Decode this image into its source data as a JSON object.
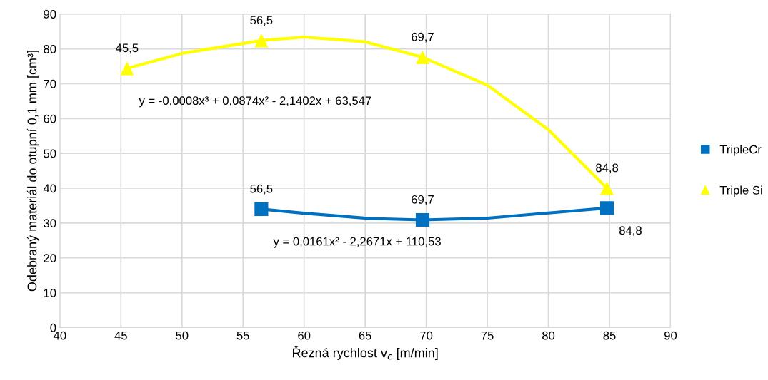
{
  "chart_data": {
    "type": "scatter",
    "xlabel": "Řezná rychlost v$_{c}$ [m/min]",
    "ylabel": "Odebraný materiál do otupní 0,1 mm [cm³]",
    "xlim": [
      40,
      90
    ],
    "xticks": [
      40,
      45,
      50,
      55,
      60,
      65,
      70,
      75,
      80,
      85,
      90
    ],
    "ylim": [
      0,
      90
    ],
    "yticks": [
      0,
      10,
      20,
      30,
      40,
      50,
      60,
      70,
      80,
      90
    ],
    "grid": true,
    "legend": "right",
    "series": [
      {
        "name": "TripleCr",
        "marker": "square",
        "color": "#0070c0",
        "x": [
          56.5,
          69.7,
          84.8
        ],
        "values": [
          34,
          30.9,
          34.3
        ]
      },
      {
        "name": "Triple Si",
        "marker": "triangle",
        "color": "#ffff00",
        "x": [
          45.5,
          56.5,
          69.7,
          84.8
        ],
        "values": [
          74.4,
          82.4,
          77.6,
          40
        ]
      },
      {
        "type": "line",
        "color": "#0070c0",
        "x": [
          56.5,
          60,
          65.4,
          69.7,
          75,
          80,
          84.8
        ],
        "values": [
          34,
          32.8,
          31.3,
          30.9,
          31.4,
          32.9,
          34.3
        ]
      },
      {
        "type": "line",
        "color": "#ffff00",
        "x": [
          45.5,
          50,
          56.5,
          60,
          65,
          69.7,
          75,
          80,
          84.8
        ],
        "values": [
          74.4,
          78.7,
          82.4,
          83.4,
          82,
          77.6,
          69.6,
          56.8,
          40
        ]
      }
    ],
    "annotations": [
      {
        "text": "56,5",
        "x": 56.5,
        "y": 34
      },
      {
        "text": "69,7",
        "x": 69.7,
        "y": 30.9
      },
      {
        "text": "84,8",
        "x": 84.8,
        "y": 34.3
      },
      {
        "text": "45,5",
        "x": 45.5,
        "y": 74.4
      },
      {
        "text": "56,5",
        "x": 56.5,
        "y": 82.4
      },
      {
        "text": "69,7",
        "x": 69.7,
        "y": 77.6
      },
      {
        "text": "84,8",
        "x": 84.8,
        "y": 40
      },
      {
        "text": "y = -0,0008x³ + 0,0874x² - 2,1402x + 63,547",
        "x": 45.5,
        "y": 74.4
      },
      {
        "text": "y = 0,0161x² - 2,2671x + 110,53",
        "x": 56.5,
        "y": 34
      }
    ]
  }
}
